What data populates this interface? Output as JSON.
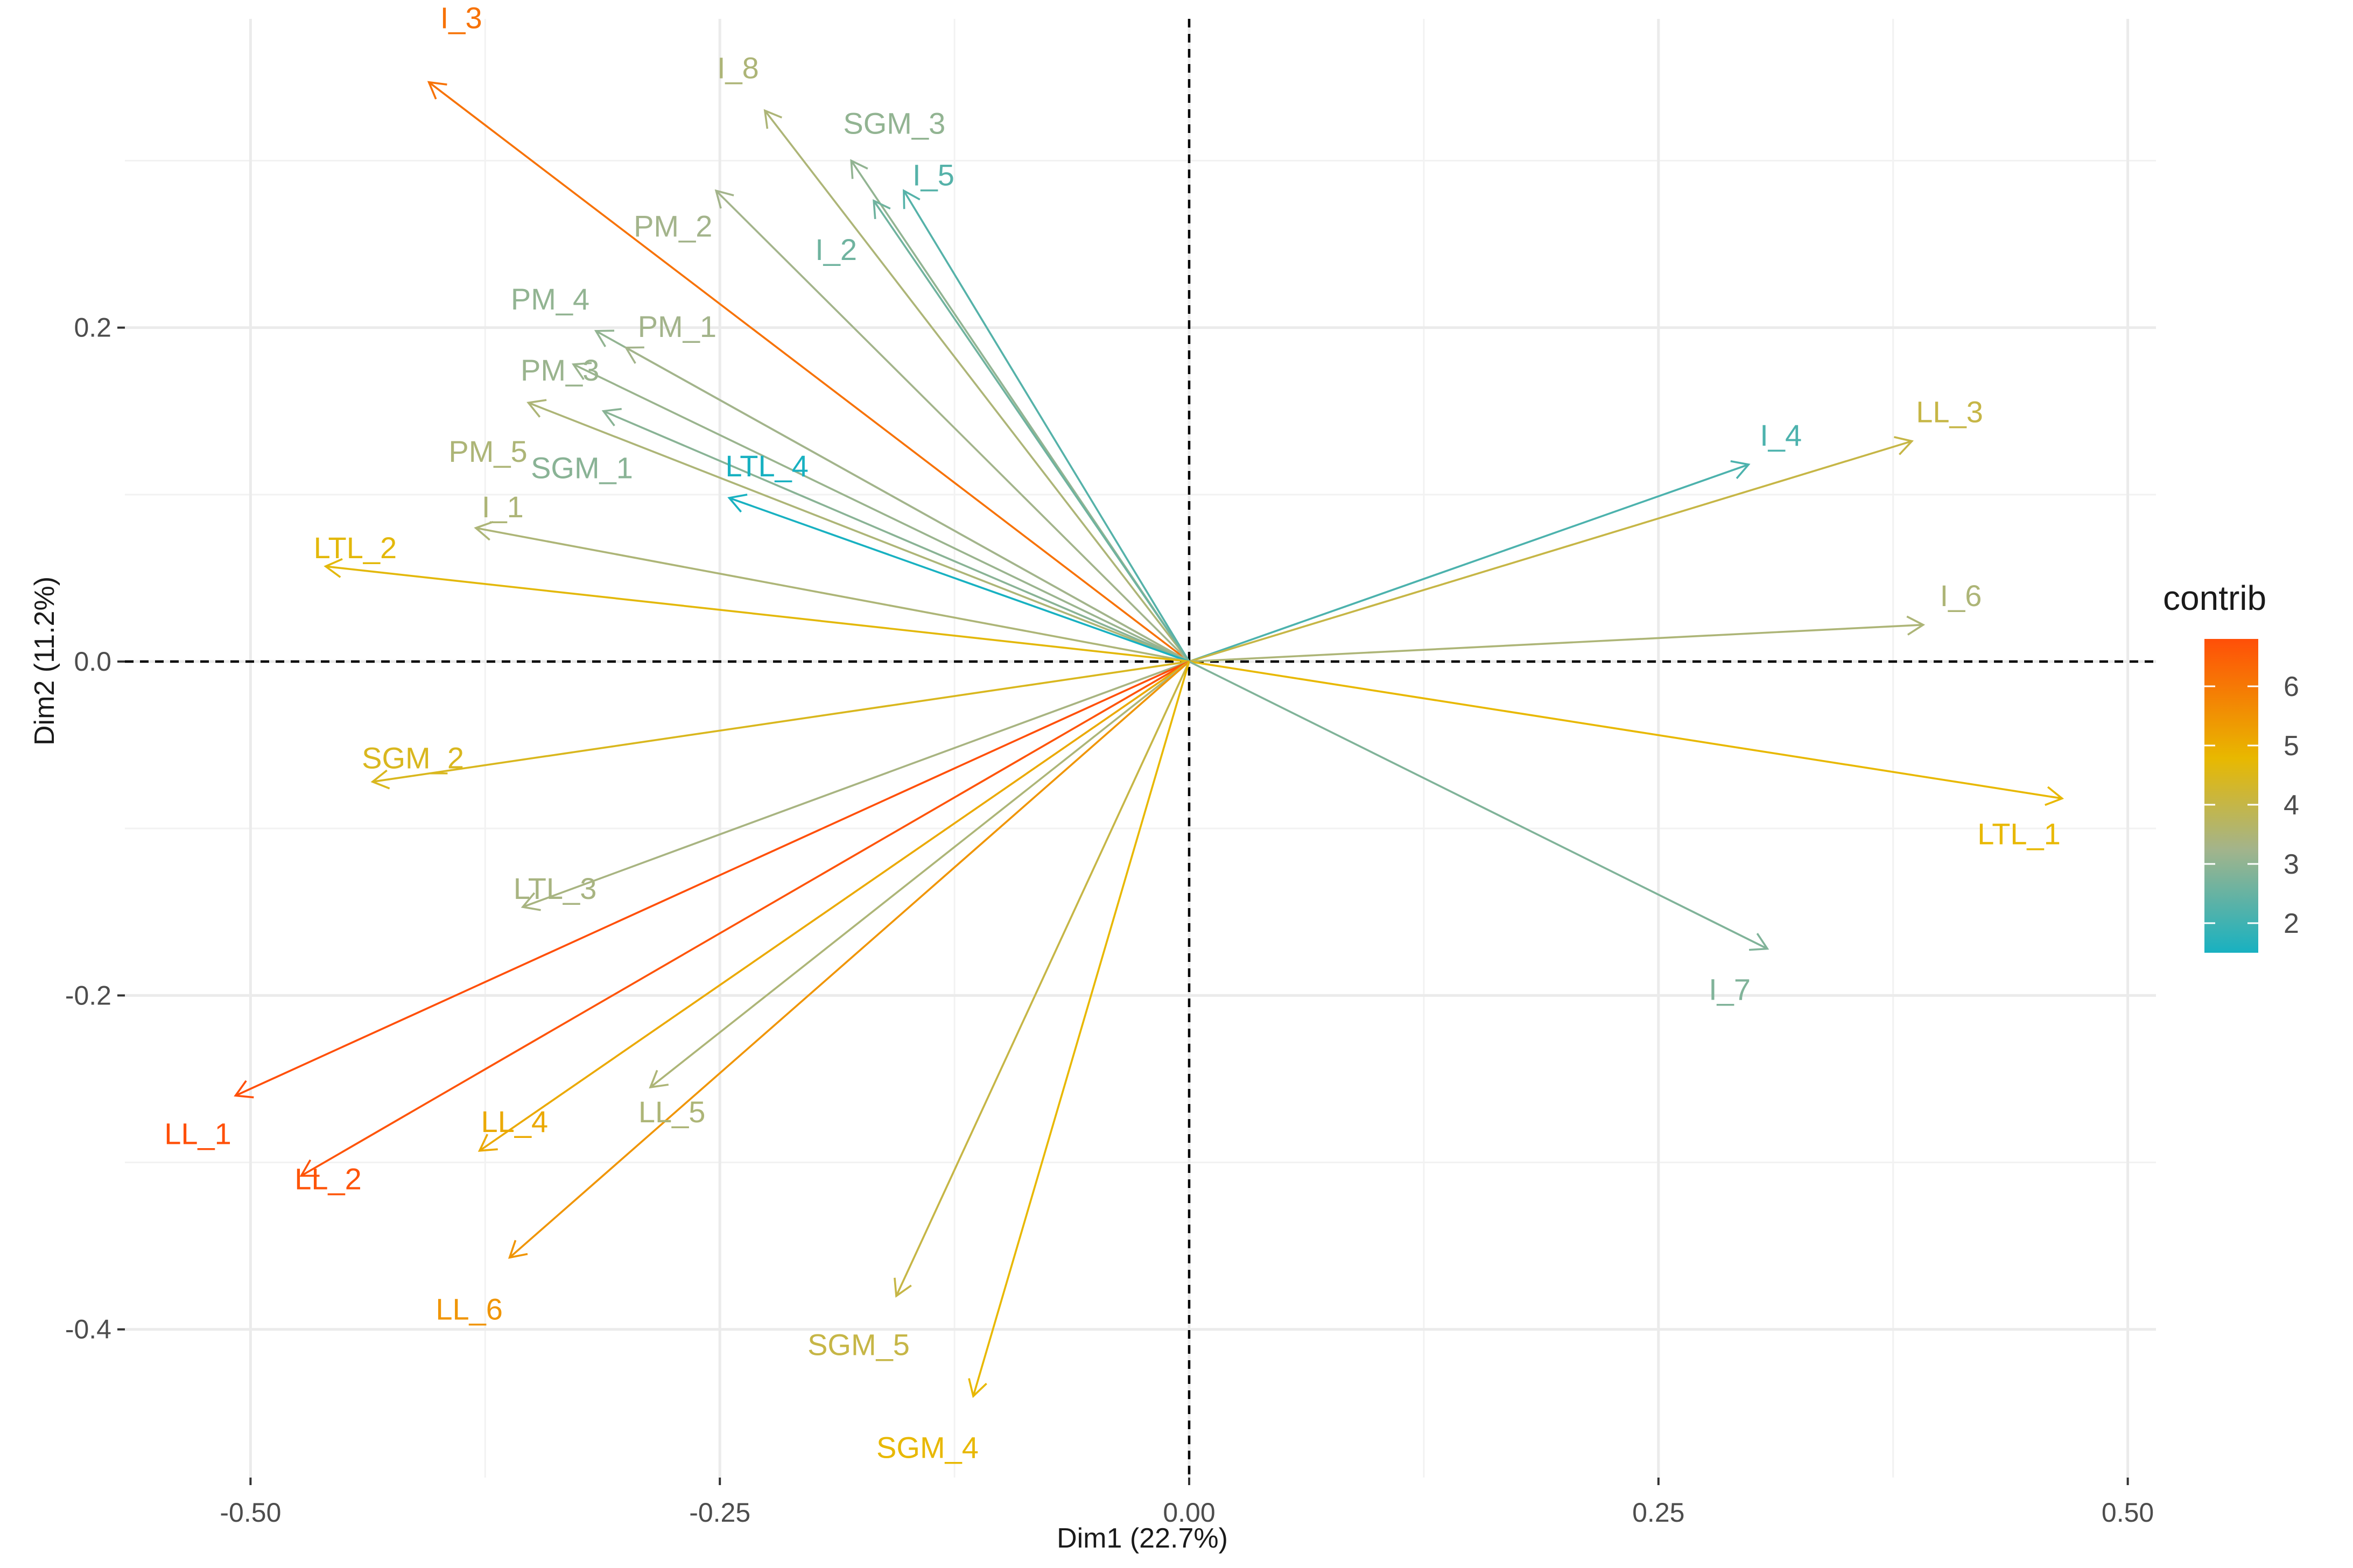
{
  "chart_data": {
    "type": "pca-variable-biplot",
    "xlabel": "Dim1 (22.7%)",
    "ylabel": "Dim2 (11.2%)",
    "xlim": [
      -0.565,
      0.515
    ],
    "ylim": [
      -0.475,
      0.385
    ],
    "xticks": [
      -0.5,
      -0.25,
      0.0,
      0.25,
      0.5
    ],
    "xtick_labels": [
      "-0.50",
      "-0.25",
      "0.00",
      "0.25",
      "0.50"
    ],
    "yticks": [
      -0.4,
      -0.2,
      0.0,
      0.2
    ],
    "ytick_labels": [
      "-0.4",
      "-0.2",
      "0.0",
      "0.2"
    ],
    "grid": true,
    "reference_lines": {
      "x": 0,
      "y": 0,
      "style": "dashed"
    },
    "legend": {
      "title": "contrib",
      "position": "right",
      "range": [
        1.5,
        6.8
      ],
      "ticks": [
        2,
        3,
        4,
        5,
        6
      ],
      "tick_labels": [
        "2",
        "3",
        "4",
        "5",
        "6"
      ],
      "colors": [
        "#18b1c1",
        "#a3b48b",
        "#e8b800",
        "#ff4f08"
      ]
    },
    "variables": [
      {
        "name": "I_3",
        "x": -0.405,
        "y": 0.347,
        "contrib": 6.0
      },
      {
        "name": "I_8",
        "x": -0.226,
        "y": 0.33,
        "contrib": 3.4
      },
      {
        "name": "SGM_3",
        "x": -0.18,
        "y": 0.3,
        "contrib": 3.0
      },
      {
        "name": "I_5",
        "x": -0.152,
        "y": 0.282,
        "contrib": 2.3
      },
      {
        "name": "PM_2",
        "x": -0.252,
        "y": 0.282,
        "contrib": 3.2
      },
      {
        "name": "I_2",
        "x": -0.168,
        "y": 0.276,
        "contrib": 2.6
      },
      {
        "name": "PM_4",
        "x": -0.316,
        "y": 0.198,
        "contrib": 3.0
      },
      {
        "name": "PM_1",
        "x": -0.3,
        "y": 0.188,
        "contrib": 3.2
      },
      {
        "name": "PM_3",
        "x": -0.328,
        "y": 0.178,
        "contrib": 3.1
      },
      {
        "name": "PM_5",
        "x": -0.352,
        "y": 0.155,
        "contrib": 3.4
      },
      {
        "name": "SGM_1",
        "x": -0.312,
        "y": 0.15,
        "contrib": 2.9
      },
      {
        "name": "LTL_4",
        "x": -0.245,
        "y": 0.098,
        "contrib": 1.6
      },
      {
        "name": "I_1",
        "x": -0.38,
        "y": 0.08,
        "contrib": 3.4
      },
      {
        "name": "LTL_2",
        "x": -0.46,
        "y": 0.057,
        "contrib": 4.5
      },
      {
        "name": "I_4",
        "x": 0.298,
        "y": 0.118,
        "contrib": 2.2
      },
      {
        "name": "LL_3",
        "x": 0.385,
        "y": 0.132,
        "contrib": 3.9
      },
      {
        "name": "I_6",
        "x": 0.391,
        "y": 0.022,
        "contrib": 3.4
      },
      {
        "name": "SGM_2",
        "x": -0.435,
        "y": -0.072,
        "contrib": 4.3
      },
      {
        "name": "LTL_3",
        "x": -0.355,
        "y": -0.147,
        "contrib": 3.3
      },
      {
        "name": "LTL_1",
        "x": 0.465,
        "y": -0.082,
        "contrib": 4.6
      },
      {
        "name": "I_7",
        "x": 0.308,
        "y": -0.172,
        "contrib": 2.8
      },
      {
        "name": "LL_1",
        "x": -0.508,
        "y": -0.26,
        "contrib": 6.7
      },
      {
        "name": "LL_2",
        "x": -0.473,
        "y": -0.308,
        "contrib": 6.6
      },
      {
        "name": "LL_4",
        "x": -0.378,
        "y": -0.293,
        "contrib": 4.9
      },
      {
        "name": "LL_5",
        "x": -0.287,
        "y": -0.255,
        "contrib": 3.4
      },
      {
        "name": "LL_6",
        "x": -0.362,
        "y": -0.357,
        "contrib": 5.3
      },
      {
        "name": "SGM_5",
        "x": -0.156,
        "y": -0.38,
        "contrib": 3.9
      },
      {
        "name": "SGM_4",
        "x": -0.115,
        "y": -0.44,
        "contrib": 4.6
      }
    ]
  }
}
